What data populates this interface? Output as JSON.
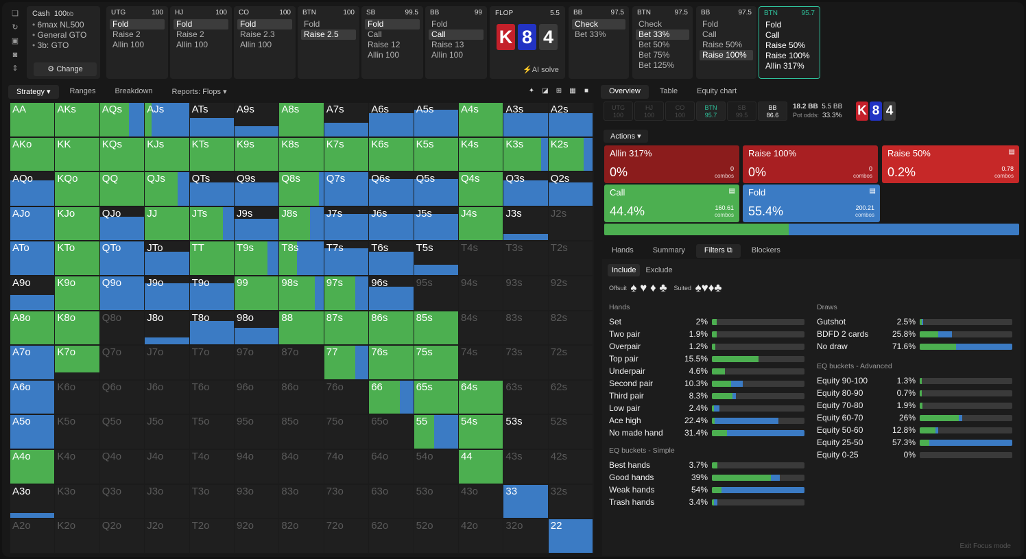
{
  "sidebar": {
    "icons": [
      "bookmark-icon",
      "refresh-icon",
      "save-icon",
      "gamepad-icon",
      "sizing-icon"
    ]
  },
  "info": {
    "game": "Cash",
    "stack": "100",
    "stack_unit": "bb",
    "lines": [
      "6max NL500",
      "General GTO",
      "3b: GTO"
    ],
    "change": "Change"
  },
  "positions": [
    {
      "name": "UTG",
      "stack": "100",
      "actions": [
        "Fold",
        "Raise 2",
        "Allin 100"
      ],
      "sel": 0
    },
    {
      "name": "HJ",
      "stack": "100",
      "actions": [
        "Fold",
        "Raise 2",
        "Allin 100"
      ],
      "sel": 0
    },
    {
      "name": "CO",
      "stack": "100",
      "actions": [
        "Fold",
        "Raise 2.3",
        "Allin 100"
      ],
      "sel": 0
    },
    {
      "name": "BTN",
      "stack": "100",
      "actions": [
        "Fold",
        "Raise 2.5"
      ],
      "sel": 1
    },
    {
      "name": "SB",
      "stack": "99.5",
      "actions": [
        "Fold",
        "Call",
        "Raise 12",
        "Allin 100"
      ],
      "sel": 0
    },
    {
      "name": "BB",
      "stack": "99",
      "actions": [
        "Fold",
        "Call",
        "Raise 13",
        "Allin 100"
      ],
      "sel": 1
    }
  ],
  "flop": {
    "label": "FLOP",
    "pot": "5.5",
    "cards": [
      {
        "r": "K",
        "c": "#c4202a"
      },
      {
        "r": "8",
        "c": "#2233c4"
      },
      {
        "r": "4",
        "c": "#3a3a3a"
      }
    ],
    "ai": "AI solve"
  },
  "postflop": [
    {
      "name": "BB",
      "stack": "97.5",
      "actions": [
        "Check",
        "Bet 33%"
      ],
      "sel": 0
    },
    {
      "name": "BTN",
      "stack": "97.5",
      "actions": [
        "Check",
        "Bet 33%",
        "Bet 50%",
        "Bet 75%",
        "Bet 125%"
      ],
      "sel": 1
    },
    {
      "name": "BB",
      "stack": "97.5",
      "actions": [
        "Fold",
        "Call",
        "Raise 50%",
        "Raise 100%"
      ],
      "sel": 3
    },
    {
      "name": "BTN",
      "stack": "95.7",
      "actions": [
        "Fold",
        "Call",
        "Raise 50%",
        "Raise 100%",
        "Allin 317%"
      ],
      "sel": -1
    }
  ],
  "tabs": [
    "Strategy",
    "Ranges",
    "Breakdown",
    "Reports: Flops"
  ],
  "colors": {
    "green": "#4caf50",
    "blue": "#3b7bc4",
    "red_dark": "#8b1c1c",
    "red": "#c62828"
  },
  "grid": {
    "rows": [
      [
        "AA",
        "AKs",
        "AQs",
        "AJs",
        "ATs",
        "A9s",
        "A8s",
        "A7s",
        "A6s",
        "A5s",
        "A4s",
        "A3s",
        "A2s"
      ],
      [
        "AKo",
        "KK",
        "KQs",
        "KJs",
        "KTs",
        "K9s",
        "K8s",
        "K7s",
        "K6s",
        "K5s",
        "K4s",
        "K3s",
        "K2s"
      ],
      [
        "AQo",
        "KQo",
        "QQ",
        "QJs",
        "QTs",
        "Q9s",
        "Q8s",
        "Q7s",
        "Q6s",
        "Q5s",
        "Q4s",
        "Q3s",
        "Q2s"
      ],
      [
        "AJo",
        "KJo",
        "QJo",
        "JJ",
        "JTs",
        "J9s",
        "J8s",
        "J7s",
        "J6s",
        "J5s",
        "J4s",
        "J3s",
        "J2s"
      ],
      [
        "ATo",
        "KTo",
        "QTo",
        "JTo",
        "TT",
        "T9s",
        "T8s",
        "T7s",
        "T6s",
        "T5s",
        "T4s",
        "T3s",
        "T2s"
      ],
      [
        "A9o",
        "K9o",
        "Q9o",
        "J9o",
        "T9o",
        "99",
        "98s",
        "97s",
        "96s",
        "95s",
        "94s",
        "93s",
        "92s"
      ],
      [
        "A8o",
        "K8o",
        "Q8o",
        "J8o",
        "T8o",
        "98o",
        "88",
        "87s",
        "86s",
        "85s",
        "84s",
        "83s",
        "82s"
      ],
      [
        "A7o",
        "K7o",
        "Q7o",
        "J7o",
        "T7o",
        "97o",
        "87o",
        "77",
        "76s",
        "75s",
        "74s",
        "73s",
        "72s"
      ],
      [
        "A6o",
        "K6o",
        "Q6o",
        "J6o",
        "T6o",
        "96o",
        "86o",
        "76o",
        "66",
        "65s",
        "64s",
        "63s",
        "62s"
      ],
      [
        "A5o",
        "K5o",
        "Q5o",
        "J5o",
        "T5o",
        "95o",
        "85o",
        "75o",
        "65o",
        "55",
        "54s",
        "53s",
        "52s"
      ],
      [
        "A4o",
        "K4o",
        "Q4o",
        "J4o",
        "T4o",
        "94o",
        "84o",
        "74o",
        "64o",
        "54o",
        "44",
        "43s",
        "42s"
      ],
      [
        "A3o",
        "K3o",
        "Q3o",
        "J3o",
        "T3o",
        "93o",
        "83o",
        "73o",
        "63o",
        "53o",
        "43o",
        "33",
        "32s"
      ],
      [
        "A2o",
        "K2o",
        "Q2o",
        "J2o",
        "T2o",
        "92o",
        "82o",
        "72o",
        "62o",
        "52o",
        "42o",
        "32o",
        "22"
      ]
    ]
  },
  "right": {
    "tabs": [
      "Overview",
      "Table",
      "Equity chart"
    ],
    "seats": [
      {
        "n": "UTG",
        "s": "100"
      },
      {
        "n": "HJ",
        "s": "100"
      },
      {
        "n": "CO",
        "s": "100"
      },
      {
        "n": "BTN",
        "s": "95.7"
      },
      {
        "n": "SB",
        "s": "99.5"
      },
      {
        "n": "BB",
        "s": "86.6"
      }
    ],
    "pot": "18.2 BB",
    "pot2": "5.5 BB",
    "odds_label": "Pot odds:",
    "odds": "33.3%",
    "actions_label": "Actions",
    "boxes": [
      {
        "name": "Allin 317%",
        "pct": "0%",
        "combos": "0",
        "cl": "combos"
      },
      {
        "name": "Raise 100%",
        "pct": "0%",
        "combos": "0",
        "cl": "combos"
      },
      {
        "name": "Raise 50%",
        "pct": "0.2%",
        "combos": "0.78",
        "cl": "combos"
      },
      {
        "name": "Call",
        "pct": "44.4%",
        "combos": "160.61",
        "cl": "combos"
      },
      {
        "name": "Fold",
        "pct": "55.4%",
        "combos": "200.21",
        "cl": "combos"
      }
    ],
    "freq": {
      "call": 44.4,
      "fold": 55.4
    },
    "subtabs": [
      "Hands",
      "Summary",
      "Filters",
      "Blockers"
    ],
    "include": "Include",
    "exclude": "Exclude",
    "offsuit": "Offsuit",
    "suited": "Suited",
    "suits_off": "♠ ♥ ♦ ♣",
    "suits_on": "♠♥♦♣",
    "hands_title": "Hands",
    "hands": [
      {
        "n": "Set",
        "v": "2%",
        "g": 5,
        "b": 0
      },
      {
        "n": "Two pair",
        "v": "1.9%",
        "g": 5,
        "b": 0
      },
      {
        "n": "Overpair",
        "v": "1.2%",
        "g": 4,
        "b": 0
      },
      {
        "n": "Top pair",
        "v": "15.5%",
        "g": 50,
        "b": 0
      },
      {
        "n": "Underpair",
        "v": "4.6%",
        "g": 14,
        "b": 0
      },
      {
        "n": "Second pair",
        "v": "10.3%",
        "g": 21,
        "b": 12
      },
      {
        "n": "Third pair",
        "v": "8.3%",
        "g": 22,
        "b": 4
      },
      {
        "n": "Low pair",
        "v": "2.4%",
        "g": 2,
        "b": 6
      },
      {
        "n": "Ace high",
        "v": "22.4%",
        "g": 3,
        "b": 69
      },
      {
        "n": "No made hand",
        "v": "31.4%",
        "g": 16,
        "b": 84
      }
    ],
    "eqs_title": "EQ buckets - Simple",
    "eqs": [
      {
        "n": "Best hands",
        "v": "3.7%",
        "g": 6,
        "b": 0
      },
      {
        "n": "Good hands",
        "v": "39%",
        "g": 64,
        "b": 9
      },
      {
        "n": "Weak hands",
        "v": "54%",
        "g": 10,
        "b": 90
      },
      {
        "n": "Trash hands",
        "v": "3.4%",
        "g": 2,
        "b": 4
      }
    ],
    "draws_title": "Draws",
    "draws": [
      {
        "n": "Gutshot",
        "v": "2.5%",
        "g": 2,
        "b": 2
      },
      {
        "n": "BDFD 2 cards",
        "v": "25.8%",
        "g": 20,
        "b": 15
      },
      {
        "n": "No draw",
        "v": "71.6%",
        "g": 39,
        "b": 61
      }
    ],
    "eqa_title": "EQ buckets - Advanced",
    "eqa": [
      {
        "n": "Equity 90-100",
        "v": "1.3%",
        "g": 2,
        "b": 0
      },
      {
        "n": "Equity 80-90",
        "v": "0.7%",
        "g": 2,
        "b": 0
      },
      {
        "n": "Equity 70-80",
        "v": "1.9%",
        "g": 3,
        "b": 0
      },
      {
        "n": "Equity 60-70",
        "v": "26%",
        "g": 42,
        "b": 4
      },
      {
        "n": "Equity 50-60",
        "v": "12.8%",
        "g": 17,
        "b": 3
      },
      {
        "n": "Equity 25-50",
        "v": "57.3%",
        "g": 10,
        "b": 90
      },
      {
        "n": "Equity 0-25",
        "v": "0%",
        "g": 0,
        "b": 0
      }
    ],
    "exit": "Exit Focus mode"
  }
}
